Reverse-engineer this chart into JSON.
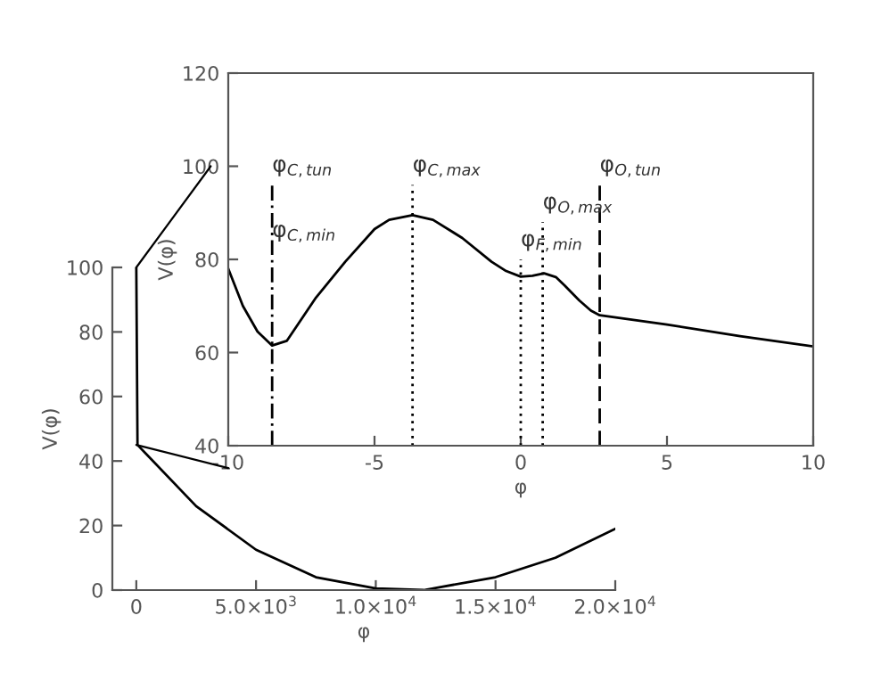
{
  "chart_data": [
    {
      "type": "line",
      "xlabel": "φ",
      "ylabel": "V(φ)",
      "xlim": [
        -1000,
        20000
      ],
      "ylim": [
        0,
        100
      ],
      "xticks": [
        0,
        {
          "value": 5000,
          "label": "5.0×10$^{3}$"
        },
        {
          "value": 10000,
          "label": "1.0×10$^{4}$"
        },
        {
          "value": 15000,
          "label": "1.5×10$^{4}$"
        },
        {
          "value": 20000,
          "label": "2.0×10$^{4}$"
        }
      ],
      "yticks": [
        0,
        20,
        40,
        60,
        80,
        100
      ],
      "series": [
        {
          "color": "#000000",
          "line_style": "solid",
          "x": [
            0,
            50,
            2500,
            5000,
            7500,
            10000,
            12000,
            15000,
            17500,
            20000
          ],
          "values": [
            100,
            45,
            26,
            12.5,
            4,
            0.5,
            0,
            4,
            10,
            19
          ]
        }
      ]
    },
    {
      "type": "line",
      "xlabel": "φ",
      "ylabel": "V(φ)",
      "xlim": [
        -10,
        10
      ],
      "ylim": [
        40,
        120
      ],
      "xticks": [
        -10,
        -5,
        0,
        5,
        10
      ],
      "yticks": [
        40,
        60,
        80,
        100,
        120
      ],
      "series": [
        {
          "color": "#000000",
          "line_style": "solid",
          "x": [
            -10,
            -9.5,
            -9,
            -8.5,
            -8,
            -7,
            -6,
            -5,
            -4.5,
            -3.7,
            -3,
            -2,
            -1,
            -0.5,
            0,
            0.4,
            0.8,
            1.2,
            1.5,
            2,
            2.4,
            2.7,
            5,
            7.5,
            10
          ],
          "values": [
            78,
            70,
            64.5,
            61.5,
            62.5,
            71.8,
            79.5,
            86.5,
            88.5,
            89.5,
            88.5,
            84.6,
            79.5,
            77.5,
            76.3,
            76.5,
            77,
            76.2,
            74.4,
            71.2,
            69,
            68,
            66,
            63.5,
            61.3
          ]
        },
        {
          "color": "#000000",
          "line_style": "dashdot",
          "x": [
            -8.5,
            -8.5
          ],
          "values": [
            40,
            96
          ]
        },
        {
          "color": "#000000",
          "line_style": "dotted",
          "x": [
            -3.7,
            -3.7
          ],
          "values": [
            40,
            96
          ]
        },
        {
          "color": "#000000",
          "line_style": "dotted",
          "x": [
            0,
            0
          ],
          "values": [
            40,
            80
          ]
        },
        {
          "color": "#000000",
          "line_style": "dotted",
          "x": [
            0.75,
            0.75
          ],
          "values": [
            40,
            88
          ]
        },
        {
          "color": "#000000",
          "line_style": "dashed",
          "x": [
            2.7,
            2.7
          ],
          "values": [
            40,
            96
          ]
        }
      ],
      "annotations": [
        {
          "text": "φ$_{C,tun}$",
          "x": -8.5,
          "y": 96
        },
        {
          "text": "φ$_{C,min}$",
          "x": -8.5,
          "y": 82
        },
        {
          "text": "φ$_{C,max}$",
          "x": -3.7,
          "y": 96
        },
        {
          "text": "φ$_{F,min}$",
          "x": 0,
          "y": 80
        },
        {
          "text": "φ$_{O,max}$",
          "x": 0.75,
          "y": 88
        },
        {
          "text": "φ$_{O,tun}$",
          "x": 2.7,
          "y": 96
        }
      ]
    }
  ]
}
